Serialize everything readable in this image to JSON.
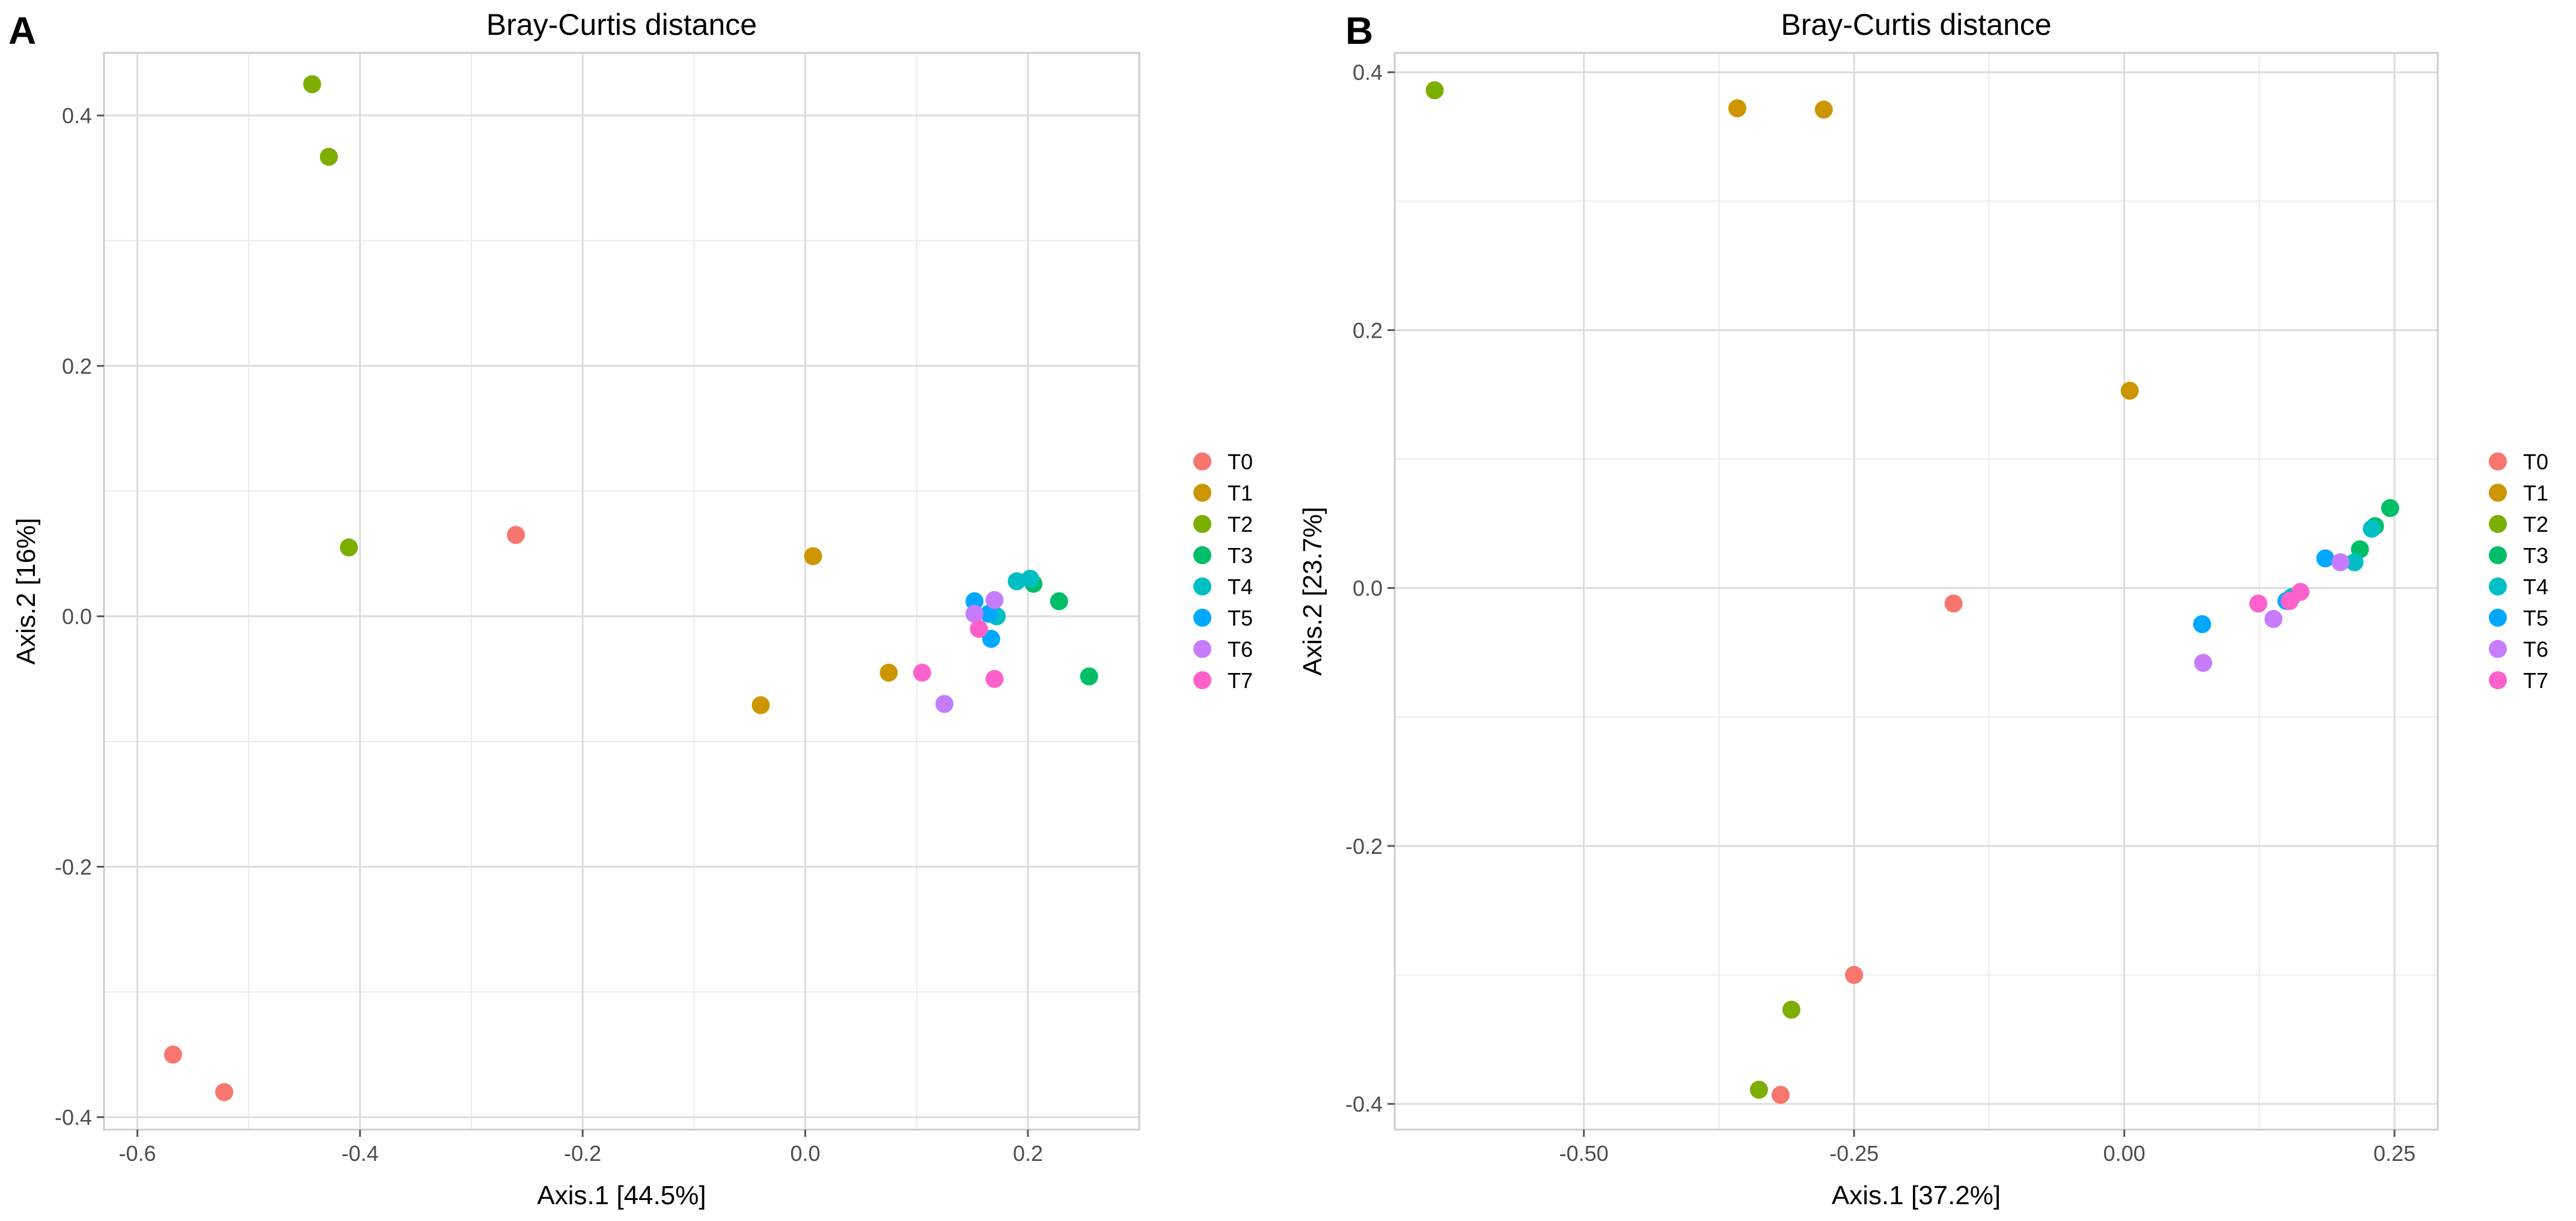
{
  "chart_data": [
    {
      "panel": "A",
      "type": "scatter",
      "title": "Bray-Curtis distance",
      "xlabel": "Axis.1   [44.5%]",
      "ylabel": "Axis.2   [16%]",
      "xlim": [
        -0.63,
        0.3
      ],
      "ylim": [
        -0.41,
        0.45
      ],
      "x_ticks": [
        -0.6,
        -0.4,
        -0.2,
        0.0,
        0.2
      ],
      "x_tick_labels": [
        "-0.6",
        "-0.4",
        "-0.2",
        "0.0",
        "0.2"
      ],
      "y_ticks": [
        -0.4,
        -0.2,
        0.0,
        0.2,
        0.4
      ],
      "y_tick_labels": [
        "-0.4",
        "-0.2",
        "0.0",
        "0.2",
        "0.4"
      ],
      "grid": true,
      "legend_position": "right",
      "series": [
        {
          "name": "T0",
          "color": "#F8766D",
          "points": [
            [
              -0.568,
              -0.35
            ],
            [
              -0.522,
              -0.38
            ],
            [
              -0.26,
              0.065
            ]
          ]
        },
        {
          "name": "T1",
          "color": "#CD9600",
          "points": [
            [
              -0.04,
              -0.071
            ],
            [
              0.007,
              0.048
            ],
            [
              0.075,
              -0.045
            ]
          ]
        },
        {
          "name": "T2",
          "color": "#7CAE00",
          "points": [
            [
              -0.443,
              0.425
            ],
            [
              -0.428,
              0.367
            ],
            [
              -0.41,
              0.055
            ]
          ]
        },
        {
          "name": "T3",
          "color": "#00BE67",
          "points": [
            [
              0.205,
              0.026
            ],
            [
              0.228,
              0.012
            ],
            [
              0.255,
              -0.048
            ]
          ]
        },
        {
          "name": "T4",
          "color": "#00BFC4",
          "points": [
            [
              0.19,
              0.028
            ],
            [
              0.202,
              0.03
            ],
            [
              0.172,
              0.0
            ]
          ]
        },
        {
          "name": "T5",
          "color": "#00A9FF",
          "points": [
            [
              0.152,
              0.012
            ],
            [
              0.165,
              0.002
            ],
            [
              0.167,
              -0.018
            ]
          ]
        },
        {
          "name": "T6",
          "color": "#C77CFF",
          "points": [
            [
              0.125,
              -0.07
            ],
            [
              0.152,
              0.002
            ],
            [
              0.17,
              0.013
            ]
          ]
        },
        {
          "name": "T7",
          "color": "#FF61CC",
          "points": [
            [
              0.105,
              -0.045
            ],
            [
              0.156,
              -0.01
            ],
            [
              0.17,
              -0.05
            ]
          ]
        }
      ]
    },
    {
      "panel": "B",
      "type": "scatter",
      "title": "Bray-Curtis distance",
      "xlabel": "Axis.1   [37.2%]",
      "ylabel": "Axis.2   [23.7%]",
      "xlim": [
        -0.675,
        0.29
      ],
      "ylim": [
        -0.42,
        0.415
      ],
      "x_ticks": [
        -0.5,
        -0.25,
        0.0,
        0.25
      ],
      "x_tick_labels": [
        "-0.50",
        "-0.25",
        "0.00",
        "0.25"
      ],
      "y_ticks": [
        -0.4,
        -0.2,
        0.0,
        0.2,
        0.4
      ],
      "y_tick_labels": [
        "-0.4",
        "-0.2",
        "0.0",
        "0.2",
        "0.4"
      ],
      "grid": true,
      "legend_position": "right",
      "series": [
        {
          "name": "T0",
          "color": "#F8766D",
          "points": [
            [
              -0.158,
              -0.012
            ],
            [
              -0.25,
              -0.3
            ],
            [
              -0.318,
              -0.393
            ]
          ]
        },
        {
          "name": "T1",
          "color": "#CD9600",
          "points": [
            [
              -0.358,
              0.372
            ],
            [
              -0.278,
              0.371
            ],
            [
              0.005,
              0.153
            ]
          ]
        },
        {
          "name": "T2",
          "color": "#7CAE00",
          "points": [
            [
              -0.638,
              0.386
            ],
            [
              -0.308,
              -0.327
            ],
            [
              -0.338,
              -0.389
            ]
          ]
        },
        {
          "name": "T3",
          "color": "#00BE67",
          "points": [
            [
              0.218,
              0.03
            ],
            [
              0.232,
              0.048
            ],
            [
              0.246,
              0.062
            ]
          ]
        },
        {
          "name": "T4",
          "color": "#00BFC4",
          "points": [
            [
              0.213,
              0.02
            ],
            [
              0.229,
              0.046
            ],
            [
              0.155,
              -0.007
            ]
          ]
        },
        {
          "name": "T5",
          "color": "#00A9FF",
          "points": [
            [
              0.072,
              -0.028
            ],
            [
              0.186,
              0.023
            ],
            [
              0.15,
              -0.01
            ]
          ]
        },
        {
          "name": "T6",
          "color": "#C77CFF",
          "points": [
            [
              0.073,
              -0.058
            ],
            [
              0.138,
              -0.024
            ],
            [
              0.2,
              0.02
            ]
          ]
        },
        {
          "name": "T7",
          "color": "#FF61CC",
          "points": [
            [
              0.124,
              -0.012
            ],
            [
              0.153,
              -0.01
            ],
            [
              0.163,
              -0.003
            ]
          ]
        }
      ]
    }
  ]
}
